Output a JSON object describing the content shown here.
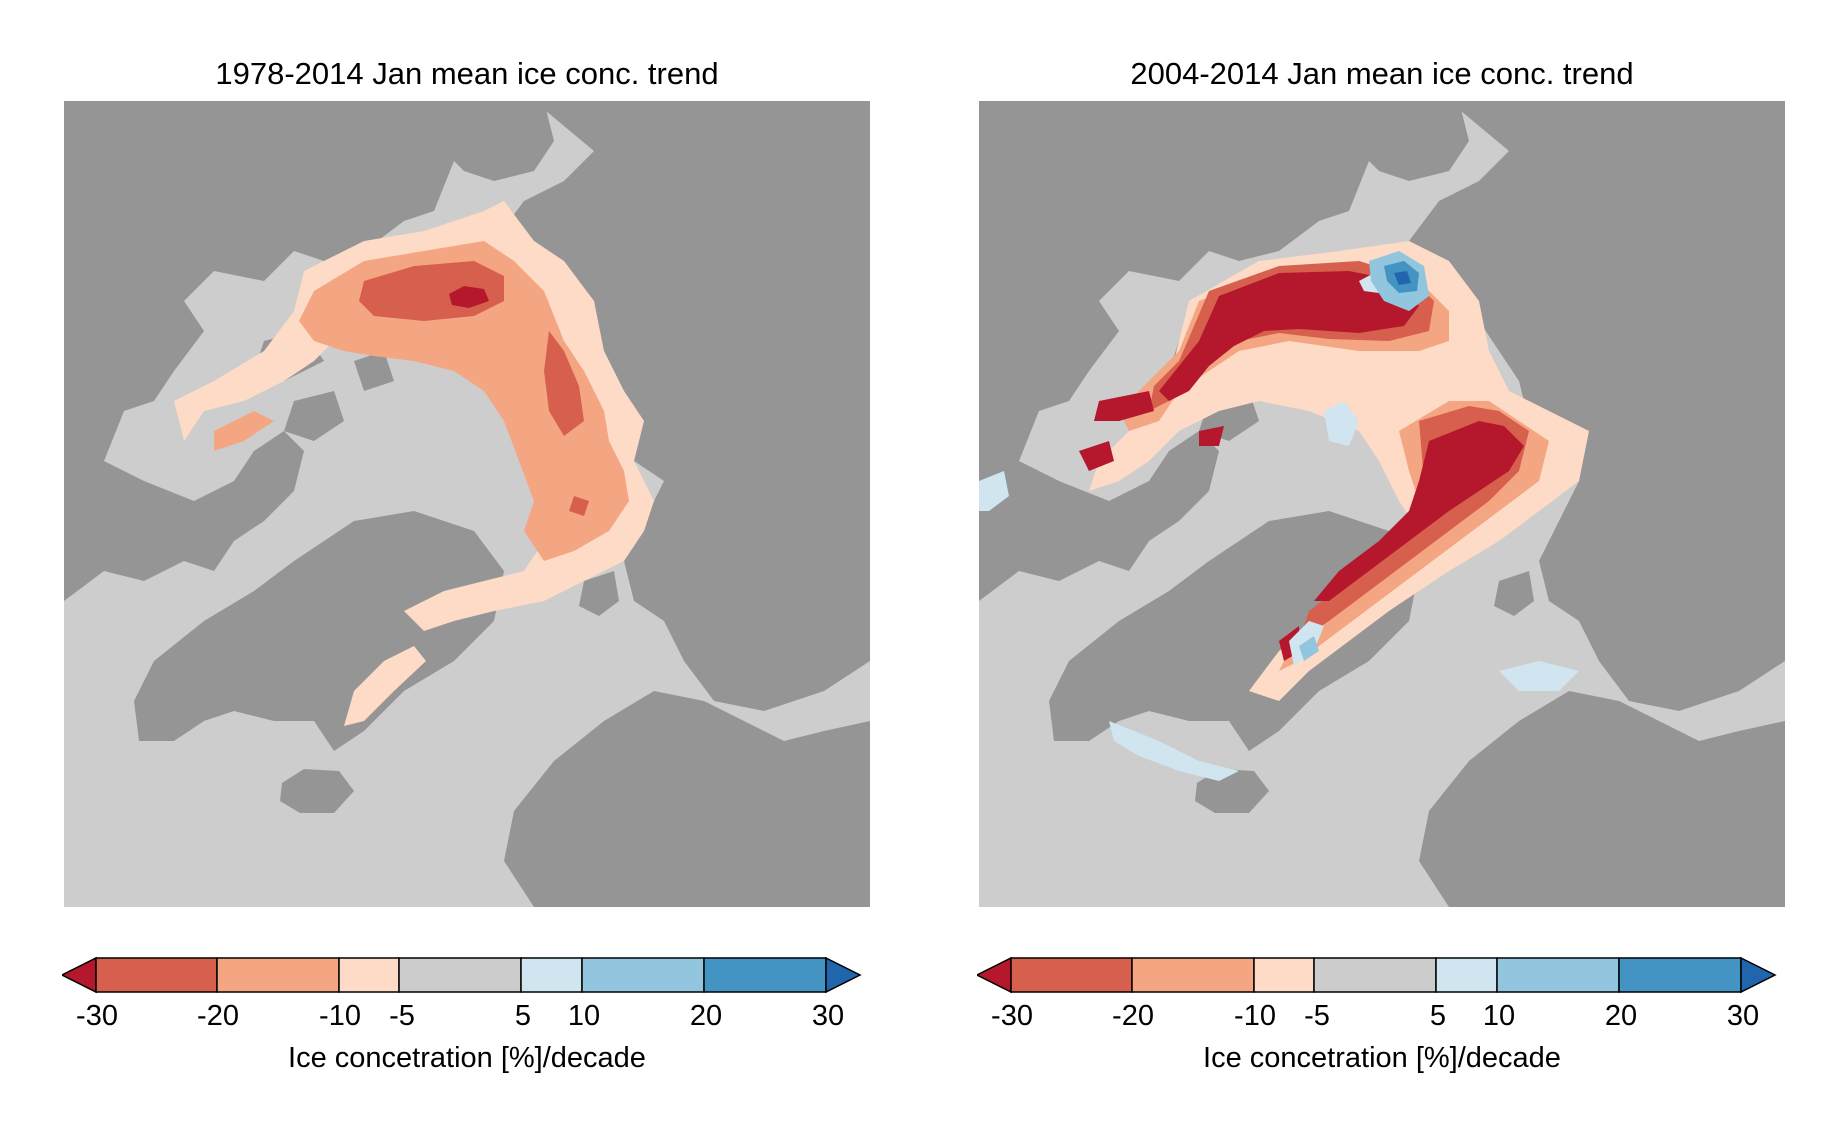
{
  "colors": {
    "land": "#959595",
    "ocean": "#cdcdcd",
    "levels": [
      "#b5182c",
      "#d6604d",
      "#f4a582",
      "#fddbc7",
      "#cccccc",
      "#d1e5f0",
      "#92c5de",
      "#4393c3",
      "#2166ac"
    ]
  },
  "panels": [
    {
      "title": "1978-2014 Jan mean ice conc. trend",
      "colorbar": {
        "ticks": [
          "-30",
          "-20",
          "-10",
          "-5",
          "5",
          "10",
          "20",
          "30"
        ],
        "label": "Ice concetration [%]/decade"
      }
    },
    {
      "title": "2004-2014 Jan mean ice conc. trend",
      "colorbar": {
        "ticks": [
          "-30",
          "-20",
          "-10",
          "-5",
          "5",
          "10",
          "20",
          "30"
        ],
        "label": "Ice concetration [%]/decade"
      }
    }
  ],
  "colorbar_levels": [
    -30,
    -20,
    -10,
    -5,
    5,
    10,
    20,
    30
  ],
  "colorbar_extend": "both"
}
